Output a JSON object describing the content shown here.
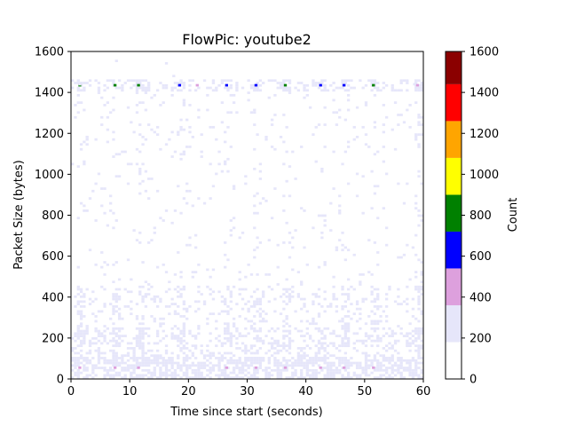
{
  "chart_data": {
    "type": "heatmap",
    "title": "FlowPic: youtube2",
    "xlabel": "Time since start (seconds)",
    "ylabel": "Packet Size (bytes)",
    "xlim": [
      0,
      60
    ],
    "ylim": [
      0,
      1600
    ],
    "x_ticks": [
      "0",
      "10",
      "20",
      "30",
      "40",
      "50",
      "60"
    ],
    "y_ticks": [
      "0",
      "200",
      "400",
      "600",
      "800",
      "1000",
      "1200",
      "1400",
      "1600"
    ],
    "grid": false,
    "bin_width_seconds": 0.5,
    "bin_height_bytes": 12,
    "colorbar": {
      "label": "Count",
      "range": [
        0,
        1600
      ],
      "ticks": [
        "0",
        "200",
        "400",
        "600",
        "800",
        "1000",
        "1200",
        "1400",
        "1600"
      ],
      "levels": [
        {
          "from": 0,
          "to": 180,
          "color": "#ffffff"
        },
        {
          "from": 180,
          "to": 360,
          "color": "#e6e6fa"
        },
        {
          "from": 360,
          "to": 540,
          "color": "#dda0dd"
        },
        {
          "from": 540,
          "to": 720,
          "color": "#0000ff"
        },
        {
          "from": 720,
          "to": 900,
          "color": "#008000"
        },
        {
          "from": 900,
          "to": 1080,
          "color": "#ffff00"
        },
        {
          "from": 1080,
          "to": 1260,
          "color": "#ffa500"
        },
        {
          "from": 1260,
          "to": 1440,
          "color": "#ff0000"
        },
        {
          "from": 1440,
          "to": 1600,
          "color": "#8b0000"
        }
      ]
    },
    "high_cells": [
      {
        "t": 1.5,
        "size": 1435,
        "level": "green"
      },
      {
        "t": 7.5,
        "size": 1435,
        "level": "green"
      },
      {
        "t": 11.5,
        "size": 1435,
        "level": "green"
      },
      {
        "t": 18.5,
        "size": 1435,
        "level": "blue"
      },
      {
        "t": 21.5,
        "size": 1435,
        "level": "plum"
      },
      {
        "t": 26.5,
        "size": 1435,
        "level": "blue"
      },
      {
        "t": 31.5,
        "size": 1435,
        "level": "blue"
      },
      {
        "t": 36.5,
        "size": 1435,
        "level": "green"
      },
      {
        "t": 42.5,
        "size": 1435,
        "level": "blue"
      },
      {
        "t": 46.5,
        "size": 1435,
        "level": "blue"
      },
      {
        "t": 51.5,
        "size": 1435,
        "level": "green"
      },
      {
        "t": 59,
        "size": 1435,
        "level": "plum"
      },
      {
        "t": 1.5,
        "size": 55,
        "level": "plum"
      },
      {
        "t": 7.5,
        "size": 55,
        "level": "plum"
      },
      {
        "t": 11.5,
        "size": 55,
        "level": "plum"
      },
      {
        "t": 26.5,
        "size": 55,
        "level": "plum"
      },
      {
        "t": 31.5,
        "size": 55,
        "level": "plum"
      },
      {
        "t": 36.5,
        "size": 55,
        "level": "plum"
      },
      {
        "t": 42.5,
        "size": 55,
        "level": "plum"
      },
      {
        "t": 46.5,
        "size": 55,
        "level": "plum"
      },
      {
        "t": 51.5,
        "size": 55,
        "level": "plum"
      },
      {
        "t": 1.5,
        "size": 1440,
        "level": "light"
      },
      {
        "t": 17.5,
        "size": 1480,
        "level": "light"
      },
      {
        "t": 58.5,
        "size": 1440,
        "level": "light"
      }
    ],
    "low_count_pattern": "light lavender cells (lowest nonzero level) scattered across all times; densest below 450 bytes, with periodic vertical streaks near 1435 bytes at the burst times above"
  }
}
